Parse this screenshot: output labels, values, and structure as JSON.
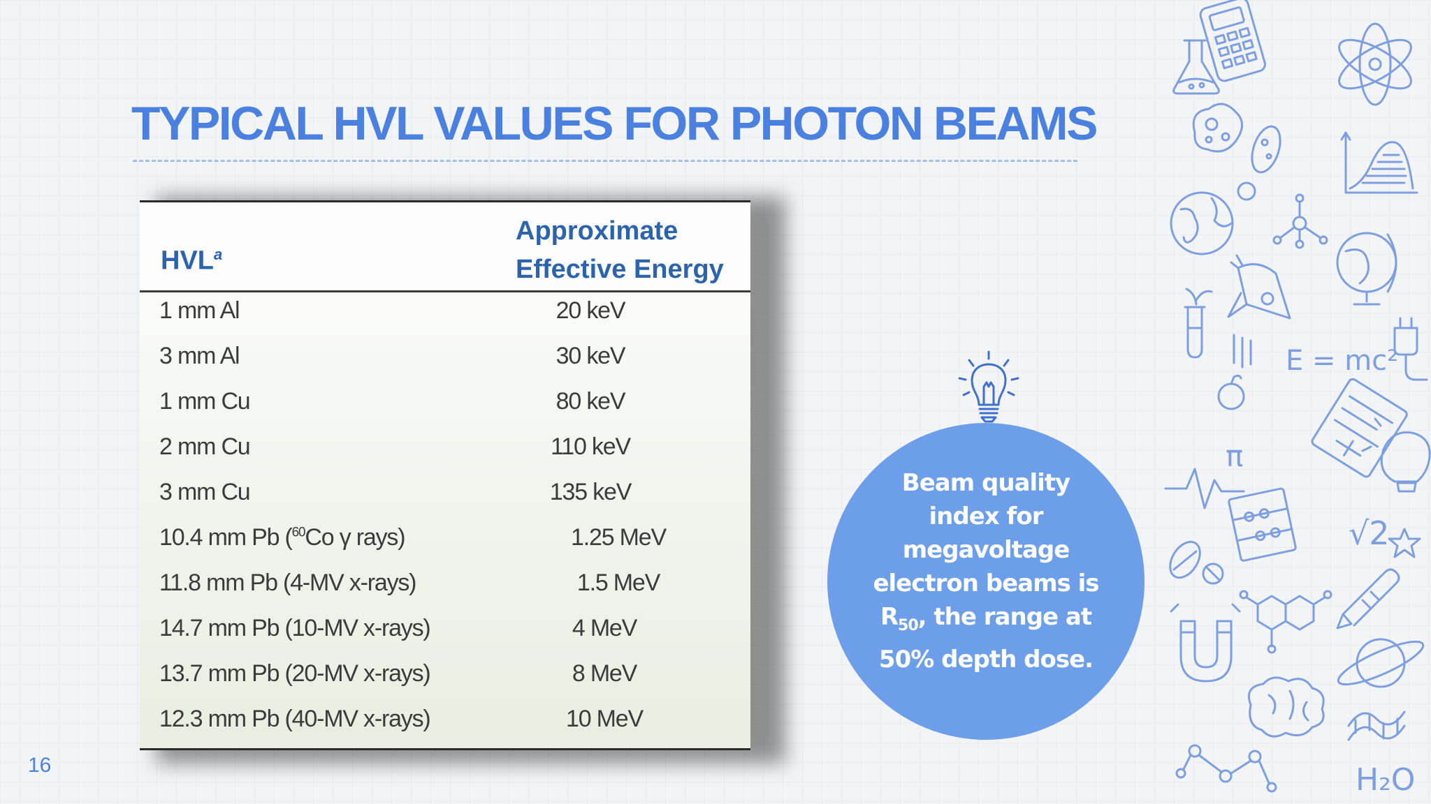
{
  "slide": {
    "title": "TYPICAL HVL VALUES FOR PHOTON BEAMS",
    "page_number": "16"
  },
  "table": {
    "header_hvl": "HVL",
    "header_hvl_footnote": "a",
    "header_energy_line1": "Approximate",
    "header_energy_line2": "Effective Energy",
    "rows": [
      {
        "hvl": "1 mm Al",
        "energy": "20 keV"
      },
      {
        "hvl": "3 mm Al",
        "energy": "30 keV"
      },
      {
        "hvl": "1 mm Cu",
        "energy": "80 keV"
      },
      {
        "hvl": "2 mm Cu",
        "energy": "110 keV"
      },
      {
        "hvl": "3 mm Cu",
        "energy": "135 keV"
      },
      {
        "hvl_pre": "10.4 mm Pb (",
        "hvl_sup": "60",
        "hvl_post": "Co γ rays)",
        "energy": "1.25 MeV"
      },
      {
        "hvl": "11.8 mm Pb (4-MV x-rays)",
        "energy": "1.5 MeV"
      },
      {
        "hvl": "14.7 mm Pb (10-MV x-rays)",
        "energy": "4 MeV"
      },
      {
        "hvl": "13.7 mm Pb (20-MV x-rays)",
        "energy": "8 MeV"
      },
      {
        "hvl": "12.3 mm Pb (40-MV x-rays)",
        "energy": "10 MeV"
      }
    ]
  },
  "note": {
    "text_before": "Beam quality index for megavoltage electron beams is R",
    "subscript": "50",
    "text_after": ", the range at 50% depth dose."
  },
  "doodles": {
    "equation": "E = mc²",
    "root": "√2",
    "pi": "π",
    "water": "H₂O"
  },
  "colors": {
    "accent": "#4a80df",
    "circle": "#6d9eea",
    "header_text": "#2b63ad",
    "doodle": "#7d9fe0"
  }
}
